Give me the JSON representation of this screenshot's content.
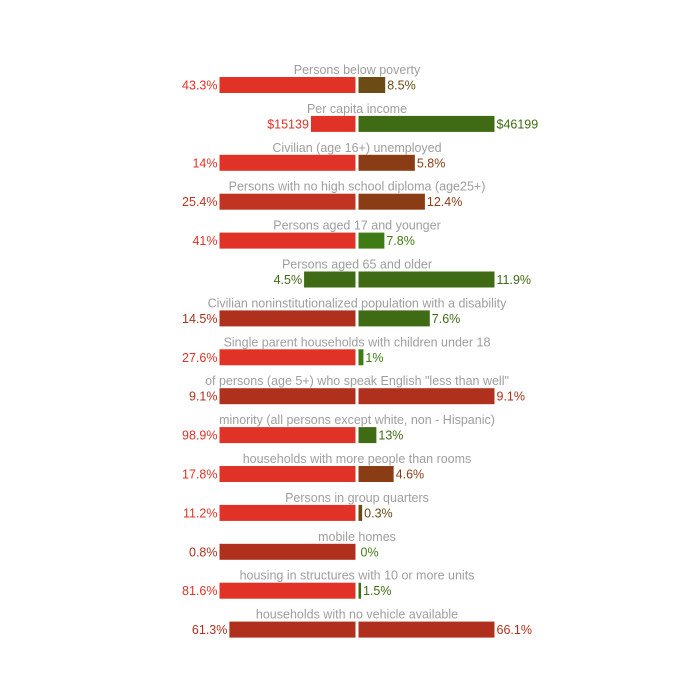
{
  "chart_data": {
    "type": "bar",
    "rows": [
      {
        "label": "Persons below poverty",
        "left": {
          "text": "43.3%",
          "value": 43.3,
          "color": "#e03226"
        },
        "right": {
          "text": "8.5%",
          "value": 8.5,
          "color": "#6b4c14"
        }
      },
      {
        "label": "Per capita income",
        "left": {
          "text": "$15139",
          "value": 15139,
          "color": "#e03226"
        },
        "right": {
          "text": "$46199",
          "value": 46199,
          "color": "#3f6b14"
        }
      },
      {
        "label": "Civilian (age 16+) unemployed",
        "left": {
          "text": "14%",
          "value": 14,
          "color": "#e03226"
        },
        "right": {
          "text": "5.8%",
          "value": 5.8,
          "color": "#8a3d14"
        }
      },
      {
        "label": "Persons with no high school diploma (age25+)",
        "left": {
          "text": "25.4%",
          "value": 25.4,
          "color": "#c23422"
        },
        "right": {
          "text": "12.4%",
          "value": 12.4,
          "color": "#8a3d14"
        }
      },
      {
        "label": "Persons aged 17 and younger",
        "left": {
          "text": "41%",
          "value": 41,
          "color": "#e03226"
        },
        "right": {
          "text": "7.8%",
          "value": 7.8,
          "color": "#3f7a14"
        }
      },
      {
        "label": "Persons aged 65 and older",
        "left": {
          "text": "4.5%",
          "value": 4.5,
          "color": "#3f6b14"
        },
        "right": {
          "text": "11.9%",
          "value": 11.9,
          "color": "#3f6b14"
        }
      },
      {
        "label": "Civilian noninstitutionalized population with a disability",
        "left": {
          "text": "14.5%",
          "value": 14.5,
          "color": "#b0301e"
        },
        "right": {
          "text": "7.6%",
          "value": 7.6,
          "color": "#3f6b14"
        }
      },
      {
        "label": "Single parent households with children under 18",
        "left": {
          "text": "27.6%",
          "value": 27.6,
          "color": "#e03226"
        },
        "right": {
          "text": "1%",
          "value": 1,
          "color": "#3f7a14"
        }
      },
      {
        "label": "of persons (age 5+) who speak English \"less than well\"",
        "left": {
          "text": "9.1%",
          "value": 9.1,
          "color": "#b0301e"
        },
        "right": {
          "text": "9.1%",
          "value": 9.1,
          "color": "#b0301e"
        }
      },
      {
        "label": "minority (all persons except white, non - Hispanic)",
        "left": {
          "text": "98.9%",
          "value": 98.9,
          "color": "#e03226"
        },
        "right": {
          "text": "13%",
          "value": 13,
          "color": "#3f6b14"
        }
      },
      {
        "label": "households with more people than rooms",
        "left": {
          "text": "17.8%",
          "value": 17.8,
          "color": "#e03226"
        },
        "right": {
          "text": "4.6%",
          "value": 4.6,
          "color": "#8a3d14"
        }
      },
      {
        "label": "Persons in group quarters",
        "left": {
          "text": "11.2%",
          "value": 11.2,
          "color": "#e03226"
        },
        "right": {
          "text": "0.3%",
          "value": 0.3,
          "color": "#6b4c14"
        }
      },
      {
        "label": "mobile homes",
        "left": {
          "text": "0.8%",
          "value": 0.8,
          "color": "#b0301e"
        },
        "right": {
          "text": "0%",
          "value": 0,
          "color": "#3f7a14"
        }
      },
      {
        "label": "housing in structures with 10 or more units",
        "left": {
          "text": "81.6%",
          "value": 81.6,
          "color": "#e03226"
        },
        "right": {
          "text": "1.5%",
          "value": 1.5,
          "color": "#3f6b14"
        }
      },
      {
        "label": "households with no vehicle available",
        "left": {
          "text": "61.3%",
          "value": 61.3,
          "color": "#b0301e"
        },
        "right": {
          "text": "66.1%",
          "value": 66.1,
          "color": "#b0301e"
        }
      }
    ]
  }
}
